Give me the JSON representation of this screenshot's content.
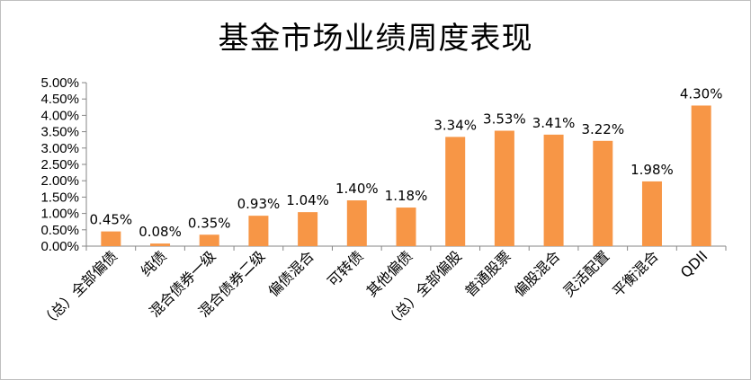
{
  "chart_data": {
    "type": "bar",
    "title": "基金市场业绩周度表现",
    "categories": [
      "（总）全部偏债",
      "纯债",
      "混合债券一级",
      "混合债券二级",
      "偏债混合",
      "可转债",
      "其他偏债",
      "（总）全部偏股",
      "普通股票",
      "偏股混合",
      "灵活配置",
      "平衡混合",
      "QDII"
    ],
    "values": [
      0.45,
      0.08,
      0.35,
      0.93,
      1.04,
      1.4,
      1.18,
      3.34,
      3.53,
      3.41,
      3.22,
      1.98,
      4.3
    ],
    "data_labels": [
      "0.45%",
      "0.08%",
      "0.35%",
      "0.93%",
      "1.04%",
      "1.40%",
      "1.18%",
      "3.34%",
      "3.53%",
      "3.41%",
      "3.22%",
      "1.98%",
      "4.30%"
    ],
    "ylim": [
      0,
      5
    ],
    "y_ticks": [
      0,
      0.5,
      1,
      1.5,
      2,
      2.5,
      3,
      3.5,
      4,
      4.5,
      5
    ],
    "y_tick_labels": [
      "0.00%",
      "0.50%",
      "1.00%",
      "1.50%",
      "2.00%",
      "2.50%",
      "3.00%",
      "3.50%",
      "4.00%",
      "4.50%",
      "5.00%"
    ],
    "xlabel": "",
    "ylabel": "",
    "grid": false,
    "legend": "none",
    "bar_color": "#F79646",
    "axis_color": "#868686"
  }
}
